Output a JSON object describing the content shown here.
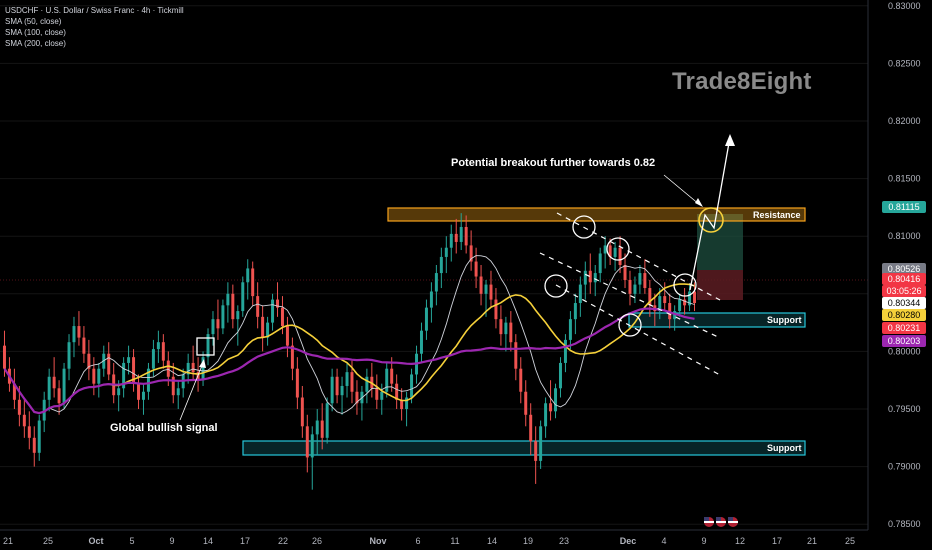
{
  "header": {
    "title": "USDCHF · U.S. Dollar / Swiss Franc · 4h · Tickmill",
    "indicators": [
      "SMA (50, close)",
      "SMA (100, close)",
      "SMA (200, close)"
    ]
  },
  "watermark": "Trade8Eight",
  "annotations": {
    "breakout": "Potential breakout further towards 0.82",
    "bullish": "Global bullish signal",
    "resistance": "Resistance",
    "support_upper": "Support",
    "support_lower": "Support"
  },
  "chart_data": {
    "type": "candlestick",
    "symbol": "USDCHF",
    "timeframe": "4h",
    "ylim": [
      0.7845,
      0.8305
    ],
    "y_ticks": [
      "0.83000",
      "0.82500",
      "0.82000",
      "0.81500",
      "0.81000",
      "0.80500",
      "0.80000",
      "0.79500",
      "0.79000",
      "0.78500"
    ],
    "x_ticks": [
      "21",
      "25",
      "Oct",
      "5",
      "9",
      "14",
      "17",
      "22",
      "26",
      "Nov",
      "6",
      "11",
      "14",
      "19",
      "23",
      "Dec",
      "4",
      "9",
      "12",
      "17",
      "21",
      "25"
    ],
    "price_badges": [
      {
        "text": "0.81115",
        "color": "#26a69a"
      },
      {
        "text": "0.80526",
        "color": "#787b86"
      },
      {
        "text": "0.80416",
        "color": "#f23645"
      },
      {
        "text": "03:05:26",
        "color": "#f23645"
      },
      {
        "text": "0.80344",
        "color": "#ffffff"
      },
      {
        "text": "0.80280",
        "color": "#f5d03a"
      },
      {
        "text": "0.80231",
        "color": "#f23645"
      },
      {
        "text": "0.80203",
        "color": "#9c27b0"
      }
    ],
    "zones": {
      "resistance": [
        0.8098,
        0.8111
      ],
      "support_upper": [
        0.8021,
        0.8035
      ],
      "support_lower": [
        0.7882,
        0.7896
      ]
    },
    "candles": [
      [
        0.8005,
        0.8018,
        0.7978,
        0.7985
      ],
      [
        0.7985,
        0.7995,
        0.7965,
        0.7972
      ],
      [
        0.7972,
        0.7985,
        0.795,
        0.7958
      ],
      [
        0.7958,
        0.797,
        0.7935,
        0.7945
      ],
      [
        0.7945,
        0.796,
        0.7925,
        0.7935
      ],
      [
        0.7935,
        0.7948,
        0.7915,
        0.7925
      ],
      [
        0.7925,
        0.7935,
        0.79,
        0.7912
      ],
      [
        0.7912,
        0.7945,
        0.7905,
        0.794
      ],
      [
        0.794,
        0.7965,
        0.793,
        0.7958
      ],
      [
        0.7958,
        0.7985,
        0.7948,
        0.7978
      ],
      [
        0.7978,
        0.7995,
        0.796,
        0.7968
      ],
      [
        0.7968,
        0.7975,
        0.7945,
        0.7955
      ],
      [
        0.7955,
        0.799,
        0.795,
        0.7985
      ],
      [
        0.7985,
        0.8015,
        0.7975,
        0.8008
      ],
      [
        0.8008,
        0.803,
        0.7995,
        0.8022
      ],
      [
        0.8022,
        0.8035,
        0.8005,
        0.8012
      ],
      [
        0.8012,
        0.8022,
        0.799,
        0.7998
      ],
      [
        0.7998,
        0.801,
        0.7975,
        0.7985
      ],
      [
        0.7985,
        0.7995,
        0.7962,
        0.7972
      ],
      [
        0.7972,
        0.799,
        0.796,
        0.7985
      ],
      [
        0.7985,
        0.8005,
        0.7978,
        0.7998
      ],
      [
        0.7998,
        0.8008,
        0.7975,
        0.798
      ],
      [
        0.798,
        0.799,
        0.7955,
        0.7962
      ],
      [
        0.7962,
        0.7975,
        0.7948,
        0.7968
      ],
      [
        0.7968,
        0.7995,
        0.796,
        0.799
      ],
      [
        0.799,
        0.8005,
        0.798,
        0.7995
      ],
      [
        0.7995,
        0.8002,
        0.7965,
        0.7972
      ],
      [
        0.7972,
        0.798,
        0.795,
        0.7958
      ],
      [
        0.7958,
        0.7972,
        0.7945,
        0.7965
      ],
      [
        0.7965,
        0.799,
        0.7958,
        0.7985
      ],
      [
        0.7985,
        0.801,
        0.7978,
        0.8002
      ],
      [
        0.8002,
        0.8018,
        0.799,
        0.8008
      ],
      [
        0.8008,
        0.8015,
        0.7985,
        0.7992
      ],
      [
        0.7992,
        0.8,
        0.797,
        0.7978
      ],
      [
        0.7978,
        0.799,
        0.7955,
        0.7962
      ],
      [
        0.7962,
        0.7975,
        0.795,
        0.7968
      ],
      [
        0.7968,
        0.7985,
        0.796,
        0.798
      ],
      [
        0.798,
        0.7998,
        0.7972,
        0.799
      ],
      [
        0.799,
        0.8005,
        0.7975,
        0.7982
      ],
      [
        0.7982,
        0.7995,
        0.7965,
        0.7975
      ],
      [
        0.7975,
        0.8,
        0.797,
        0.7995
      ],
      [
        0.7995,
        0.802,
        0.7988,
        0.8015
      ],
      [
        0.8015,
        0.8035,
        0.8005,
        0.8028
      ],
      [
        0.8028,
        0.8045,
        0.801,
        0.802
      ],
      [
        0.802,
        0.8045,
        0.8015,
        0.804
      ],
      [
        0.804,
        0.806,
        0.8025,
        0.805
      ],
      [
        0.805,
        0.8058,
        0.802,
        0.8028
      ],
      [
        0.8028,
        0.804,
        0.8005,
        0.8035
      ],
      [
        0.8035,
        0.8065,
        0.803,
        0.806
      ],
      [
        0.806,
        0.808,
        0.8045,
        0.8072
      ],
      [
        0.8072,
        0.8078,
        0.804,
        0.8048
      ],
      [
        0.8048,
        0.806,
        0.802,
        0.803
      ],
      [
        0.803,
        0.804,
        0.8,
        0.8012
      ],
      [
        0.8012,
        0.803,
        0.8005,
        0.8025
      ],
      [
        0.8025,
        0.805,
        0.8018,
        0.8045
      ],
      [
        0.8045,
        0.806,
        0.803,
        0.8038
      ],
      [
        0.8038,
        0.8048,
        0.8015,
        0.8022
      ],
      [
        0.8022,
        0.803,
        0.7995,
        0.8005
      ],
      [
        0.8005,
        0.8012,
        0.7975,
        0.7985
      ],
      [
        0.7985,
        0.7995,
        0.795,
        0.796
      ],
      [
        0.796,
        0.797,
        0.7925,
        0.7935
      ],
      [
        0.7935,
        0.7945,
        0.7895,
        0.7908
      ],
      [
        0.7908,
        0.7935,
        0.788,
        0.7928
      ],
      [
        0.7928,
        0.795,
        0.791,
        0.794
      ],
      [
        0.794,
        0.7955,
        0.7915,
        0.7925
      ],
      [
        0.7925,
        0.796,
        0.792,
        0.7955
      ],
      [
        0.7955,
        0.7985,
        0.7948,
        0.7978
      ],
      [
        0.7978,
        0.7985,
        0.7955,
        0.7962
      ],
      [
        0.7962,
        0.7978,
        0.7945,
        0.797
      ],
      [
        0.797,
        0.799,
        0.796,
        0.7982
      ],
      [
        0.7982,
        0.7992,
        0.7955,
        0.7965
      ],
      [
        0.7965,
        0.7975,
        0.7945,
        0.7955
      ],
      [
        0.7955,
        0.797,
        0.794,
        0.7965
      ],
      [
        0.7965,
        0.7985,
        0.7955,
        0.7978
      ],
      [
        0.7978,
        0.799,
        0.796,
        0.7968
      ],
      [
        0.7968,
        0.798,
        0.795,
        0.7958
      ],
      [
        0.7958,
        0.7972,
        0.7945,
        0.7965
      ],
      [
        0.7965,
        0.799,
        0.796,
        0.7985
      ],
      [
        0.7985,
        0.7995,
        0.7965,
        0.7972
      ],
      [
        0.7972,
        0.798,
        0.795,
        0.7958
      ],
      [
        0.7958,
        0.7968,
        0.794,
        0.795
      ],
      [
        0.795,
        0.7965,
        0.7935,
        0.796
      ],
      [
        0.796,
        0.7985,
        0.7955,
        0.798
      ],
      [
        0.798,
        0.8005,
        0.7972,
        0.7998
      ],
      [
        0.7998,
        0.8025,
        0.799,
        0.8018
      ],
      [
        0.8018,
        0.8045,
        0.801,
        0.8038
      ],
      [
        0.8038,
        0.806,
        0.8025,
        0.8052
      ],
      [
        0.8052,
        0.8075,
        0.804,
        0.8068
      ],
      [
        0.8068,
        0.809,
        0.8055,
        0.8082
      ],
      [
        0.8082,
        0.81,
        0.8068,
        0.809
      ],
      [
        0.809,
        0.811,
        0.8078,
        0.8102
      ],
      [
        0.8102,
        0.8115,
        0.8085,
        0.8095
      ],
      [
        0.8095,
        0.812,
        0.8088,
        0.8108
      ],
      [
        0.8108,
        0.8118,
        0.8085,
        0.8092
      ],
      [
        0.8092,
        0.8105,
        0.807,
        0.8078
      ],
      [
        0.8078,
        0.809,
        0.8055,
        0.8065
      ],
      [
        0.8065,
        0.8075,
        0.804,
        0.805
      ],
      [
        0.805,
        0.8062,
        0.803,
        0.8058
      ],
      [
        0.8058,
        0.807,
        0.8038,
        0.8045
      ],
      [
        0.8045,
        0.8055,
        0.802,
        0.8028
      ],
      [
        0.8028,
        0.804,
        0.8005,
        0.8015
      ],
      [
        0.8015,
        0.803,
        0.8,
        0.8025
      ],
      [
        0.8025,
        0.8035,
        0.8,
        0.8008
      ],
      [
        0.8008,
        0.8015,
        0.7975,
        0.7985
      ],
      [
        0.7985,
        0.7995,
        0.7955,
        0.7965
      ],
      [
        0.7965,
        0.7975,
        0.7935,
        0.7945
      ],
      [
        0.7945,
        0.7955,
        0.791,
        0.7922
      ],
      [
        0.7922,
        0.7935,
        0.7885,
        0.7905
      ],
      [
        0.7905,
        0.794,
        0.7898,
        0.7935
      ],
      [
        0.7935,
        0.796,
        0.7925,
        0.7955
      ],
      [
        0.7955,
        0.7975,
        0.794,
        0.7948
      ],
      [
        0.7948,
        0.7972,
        0.7942,
        0.7968
      ],
      [
        0.7968,
        0.7995,
        0.796,
        0.799
      ],
      [
        0.799,
        0.8015,
        0.7982,
        0.801
      ],
      [
        0.801,
        0.8035,
        0.8002,
        0.8028
      ],
      [
        0.8028,
        0.805,
        0.8015,
        0.8042
      ],
      [
        0.8042,
        0.8065,
        0.803,
        0.8058
      ],
      [
        0.8058,
        0.8078,
        0.8045,
        0.807
      ],
      [
        0.807,
        0.8085,
        0.805,
        0.806
      ],
      [
        0.806,
        0.8075,
        0.8048,
        0.8068
      ],
      [
        0.8068,
        0.809,
        0.806,
        0.8085
      ],
      [
        0.8085,
        0.81,
        0.8072,
        0.8092
      ],
      [
        0.8092,
        0.8098,
        0.8075,
        0.8082
      ],
      [
        0.8082,
        0.8095,
        0.807,
        0.809
      ],
      [
        0.809,
        0.81,
        0.8068,
        0.8075
      ],
      [
        0.8075,
        0.8085,
        0.8055,
        0.8062
      ],
      [
        0.8062,
        0.807,
        0.804,
        0.805
      ],
      [
        0.805,
        0.8065,
        0.8042,
        0.8058
      ],
      [
        0.8058,
        0.8075,
        0.805,
        0.8068
      ],
      [
        0.8068,
        0.808,
        0.805,
        0.8055
      ],
      [
        0.8055,
        0.8062,
        0.803,
        0.804
      ],
      [
        0.804,
        0.805,
        0.8022,
        0.8035
      ],
      [
        0.8035,
        0.8055,
        0.8028,
        0.8048
      ],
      [
        0.8048,
        0.806,
        0.8035,
        0.8042
      ],
      [
        0.8042,
        0.805,
        0.802,
        0.8028
      ],
      [
        0.8028,
        0.804,
        0.8018,
        0.8035
      ],
      [
        0.8035,
        0.805,
        0.803,
        0.8045
      ],
      [
        0.8045,
        0.8055,
        0.8032,
        0.804
      ],
      [
        0.804,
        0.8058,
        0.8035,
        0.8052
      ],
      [
        0.8052,
        0.806,
        0.8035,
        0.8042
      ]
    ]
  }
}
